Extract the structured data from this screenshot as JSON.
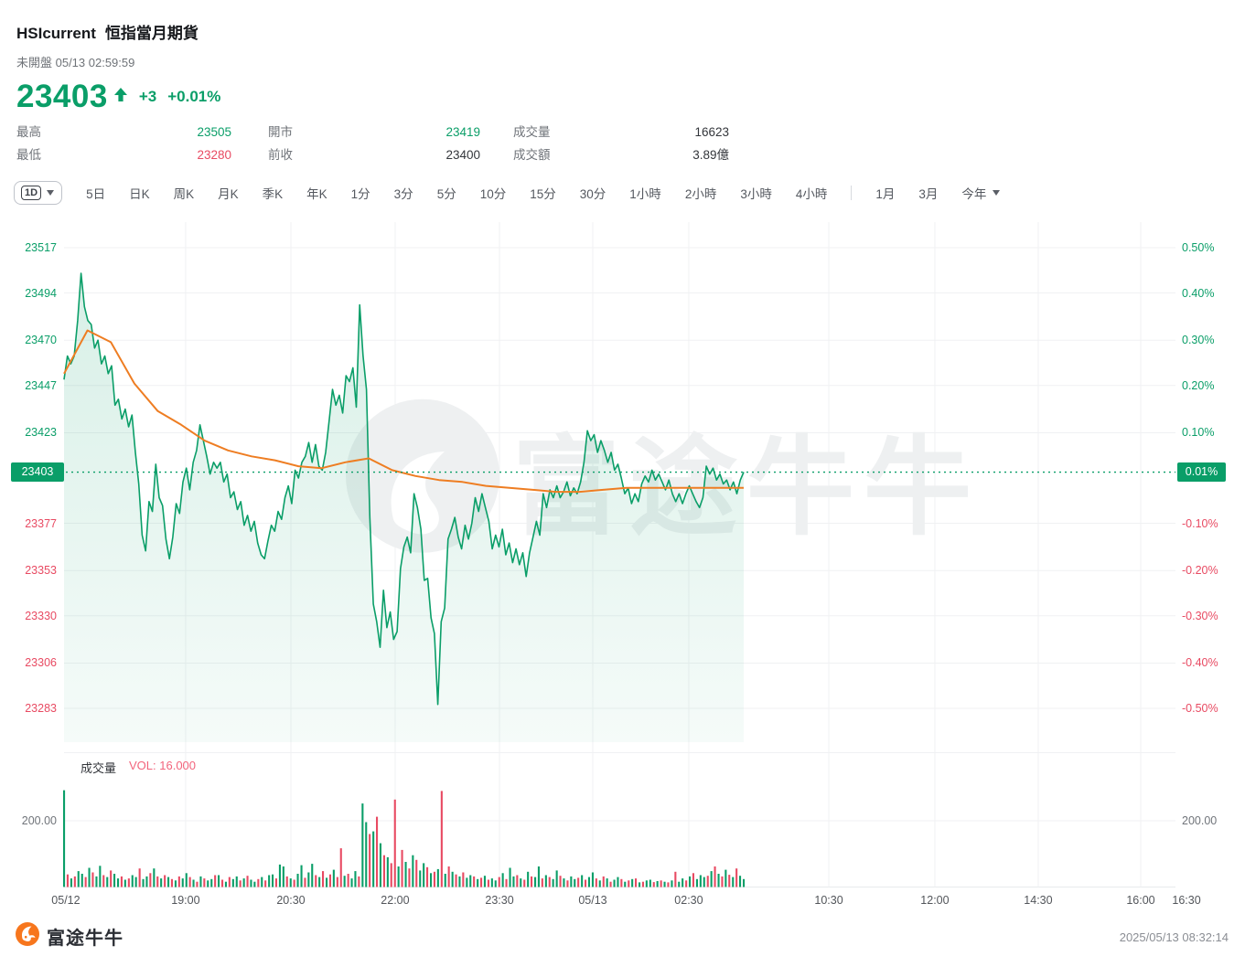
{
  "header": {
    "symbol": "HSIcurrent",
    "name": "恒指當月期貨",
    "status": "未開盤 05/13 02:59:59",
    "price": "23403",
    "change": "+3",
    "change_pct": "+0.01%",
    "stats": [
      {
        "label": "最高",
        "value": "23505",
        "tone": "up"
      },
      {
        "label": "最低",
        "value": "23280",
        "tone": "down"
      },
      {
        "label": "開市",
        "value": "23419",
        "tone": "up"
      },
      {
        "label": "前收",
        "value": "23400",
        "tone": "neutral"
      },
      {
        "label": "成交量",
        "value": "16623",
        "tone": "neutral"
      },
      {
        "label": "成交額",
        "value": "3.89億",
        "tone": "neutral"
      }
    ]
  },
  "toolbar": {
    "period_button": "1D",
    "tabs_left": [
      "5日",
      "日K",
      "周K",
      "月K",
      "季K",
      "年K",
      "1分",
      "3分",
      "5分",
      "10分",
      "15分",
      "30分",
      "1小時",
      "2小時",
      "3小時",
      "4小時"
    ],
    "tabs_right": [
      "1月",
      "3月"
    ],
    "today_label": "今年"
  },
  "colors": {
    "up": "#0a9e68",
    "down": "#e84a62",
    "ma": "#ee7d22",
    "vol_label": "#f2647c",
    "grid": "#f0f1f3",
    "watermark": "#eef0f1",
    "brand_orange": "#f7761d"
  },
  "chart_data": {
    "type": "line",
    "title": "恒指當月期貨 1D 分時圖",
    "watermark": "富途牛牛",
    "prev_close": 23400,
    "current_price": 23403,
    "badge_left": "23403",
    "badge_right": "0.01%",
    "y_axis_left_labels": [
      {
        "text": "23517",
        "value": 23517,
        "tone": "up"
      },
      {
        "text": "23494",
        "value": 23494,
        "tone": "up"
      },
      {
        "text": "23470",
        "value": 23470,
        "tone": "up"
      },
      {
        "text": "23447",
        "value": 23447,
        "tone": "up"
      },
      {
        "text": "23423",
        "value": 23423,
        "tone": "up"
      },
      {
        "text": "23377",
        "value": 23377,
        "tone": "down"
      },
      {
        "text": "23353",
        "value": 23353,
        "tone": "down"
      },
      {
        "text": "23330",
        "value": 23330,
        "tone": "down"
      },
      {
        "text": "23306",
        "value": 23306,
        "tone": "down"
      },
      {
        "text": "23283",
        "value": 23283,
        "tone": "down"
      }
    ],
    "y_axis_right_labels": [
      {
        "text": "0.50%",
        "value": 23517,
        "tone": "up"
      },
      {
        "text": "0.40%",
        "value": 23493.6,
        "tone": "up"
      },
      {
        "text": "0.30%",
        "value": 23470.2,
        "tone": "up"
      },
      {
        "text": "0.20%",
        "value": 23446.8,
        "tone": "up"
      },
      {
        "text": "0.10%",
        "value": 23423.4,
        "tone": "up"
      },
      {
        "text": "-0.10%",
        "value": 23376.6,
        "tone": "down"
      },
      {
        "text": "-0.20%",
        "value": 23353.2,
        "tone": "down"
      },
      {
        "text": "-0.30%",
        "value": 23329.8,
        "tone": "down"
      },
      {
        "text": "-0.40%",
        "value": 23306.4,
        "tone": "down"
      },
      {
        "text": "-0.50%",
        "value": 23283,
        "tone": "down"
      }
    ],
    "x_labels": [
      {
        "text": "05/12",
        "f": 0.0016,
        "grid": false
      },
      {
        "text": "19:00",
        "f": 0.1094,
        "grid": true
      },
      {
        "text": "20:30",
        "f": 0.2041,
        "grid": true
      },
      {
        "text": "22:00",
        "f": 0.2979,
        "grid": true
      },
      {
        "text": "23:30",
        "f": 0.3918,
        "grid": true
      },
      {
        "text": "05/13",
        "f": 0.4757,
        "grid": true
      },
      {
        "text": "02:30",
        "f": 0.5621,
        "grid": true
      },
      {
        "text": "10:30",
        "f": 0.6881,
        "grid": true
      },
      {
        "text": "12:00",
        "f": 0.7835,
        "grid": true
      },
      {
        "text": "14:30",
        "f": 0.8765,
        "grid": true
      },
      {
        "text": "16:00",
        "f": 0.9687,
        "grid": true
      },
      {
        "text": "16:30",
        "f": 1.0099,
        "grid": false
      }
    ],
    "series_x_end": 0.6115,
    "prices": [
      23450,
      23462,
      23458,
      23462,
      23480,
      23504,
      23487,
      23480,
      23478,
      23466,
      23470,
      23458,
      23462,
      23453,
      23457,
      23437,
      23440,
      23430,
      23435,
      23426,
      23432,
      23413,
      23397,
      23371,
      23363,
      23388,
      23383,
      23407,
      23390,
      23386,
      23369,
      23359,
      23370,
      23387,
      23382,
      23398,
      23405,
      23394,
      23408,
      23414,
      23427,
      23419,
      23411,
      23402,
      23408,
      23405,
      23408,
      23398,
      23402,
      23390,
      23393,
      23384,
      23388,
      23376,
      23381,
      23373,
      23378,
      23367,
      23361,
      23359,
      23368,
      23376,
      23373,
      23383,
      23379,
      23390,
      23396,
      23387,
      23404,
      23400,
      23408,
      23411,
      23418,
      23408,
      23417,
      23406,
      23404,
      23413,
      23429,
      23445,
      23437,
      23442,
      23433,
      23452,
      23449,
      23456,
      23436,
      23488,
      23462,
      23445,
      23380,
      23336,
      23327,
      23314,
      23343,
      23324,
      23332,
      23318,
      23322,
      23354,
      23365,
      23370,
      23362,
      23392,
      23385,
      23374,
      23348,
      23349,
      23329,
      23321,
      23285,
      23327,
      23334,
      23369,
      23374,
      23380,
      23370,
      23364,
      23376,
      23369,
      23377,
      23390,
      23383,
      23392,
      23385,
      23378,
      23364,
      23371,
      23365,
      23374,
      23361,
      23367,
      23357,
      23364,
      23356,
      23362,
      23350,
      23362,
      23370,
      23378,
      23371,
      23392,
      23385,
      23394,
      23390,
      23396,
      23390,
      23393,
      23398,
      23391,
      23395,
      23392,
      23398,
      23408,
      23424,
      23419,
      23422,
      23413,
      23419,
      23414,
      23408,
      23413,
      23404,
      23407,
      23400,
      23392,
      23395,
      23387,
      23392,
      23388,
      23397,
      23401,
      23398,
      23404,
      23399,
      23402,
      23398,
      23394,
      23399,
      23392,
      23388,
      23392,
      23387,
      23392,
      23396,
      23392,
      23388,
      23385,
      23390,
      23406,
      23402,
      23405,
      23399,
      23402,
      23397,
      23399,
      23394,
      23398,
      23392,
      23399,
      23403
    ],
    "ma": [
      23453,
      23475,
      23469,
      23448,
      23434,
      23427,
      23419,
      23414,
      23411,
      23409,
      23406,
      23405,
      23408,
      23410,
      23404,
      23401,
      23399,
      23398,
      23396,
      23395,
      23394,
      23393,
      23393,
      23394,
      23395,
      23395,
      23395,
      23395,
      23395,
      23395
    ],
    "volume_pane": {
      "indicator_label": "成交量",
      "value_label": "VOL: 16.000",
      "grid_value": 200,
      "grid_label": "200.00",
      "volumes": [
        292,
        -38,
        26,
        -32,
        48,
        40,
        -30,
        58,
        -44,
        32,
        64,
        -36,
        30,
        -50,
        40,
        26,
        -32,
        22,
        -26,
        36,
        30,
        -56,
        24,
        32,
        -42,
        56,
        -32,
        26,
        -36,
        30,
        -24,
        20,
        -32,
        26,
        42,
        -30,
        22,
        -16,
        32,
        -26,
        20,
        24,
        -36,
        36,
        -22,
        16,
        -30,
        24,
        32,
        -20,
        26,
        -34,
        22,
        16,
        -24,
        30,
        -20,
        36,
        38,
        -26,
        68,
        62,
        -32,
        26,
        -22,
        40,
        66,
        -28,
        44,
        70,
        -36,
        30,
        -48,
        28,
        -38,
        52,
        -30,
        -117,
        34,
        -40,
        26,
        48,
        -32,
        252,
        196,
        -160,
        168,
        -212,
        132,
        -96,
        90,
        -72,
        -264,
        62,
        -112,
        76,
        -56,
        96,
        -82,
        50,
        72,
        -60,
        42,
        -46,
        54,
        -290,
        40,
        -62,
        46,
        -38,
        32,
        -44,
        28,
        36,
        -32,
        24,
        -28,
        34,
        -22,
        26,
        20,
        -30,
        42,
        -24,
        58,
        32,
        -36,
        26,
        -22,
        46,
        -32,
        30,
        62,
        -26,
        36,
        -30,
        24,
        50,
        -34,
        26,
        -20,
        32,
        24,
        -28,
        36,
        -22,
        30,
        44,
        -26,
        20,
        -32,
        26,
        -16,
        22,
        30,
        -24,
        16,
        -20,
        24,
        -26,
        14,
        -16,
        20,
        22,
        -15,
        18,
        -20,
        16,
        -14,
        20,
        -46,
        16,
        26,
        -20,
        32,
        -42,
        24,
        36,
        30,
        -34,
        48,
        -62,
        40,
        -32,
        52,
        -37,
        30,
        -56,
        34,
        24
      ]
    }
  },
  "footer": {
    "brand": "富途牛牛",
    "timestamp": "2025/05/13 08:32:14"
  }
}
